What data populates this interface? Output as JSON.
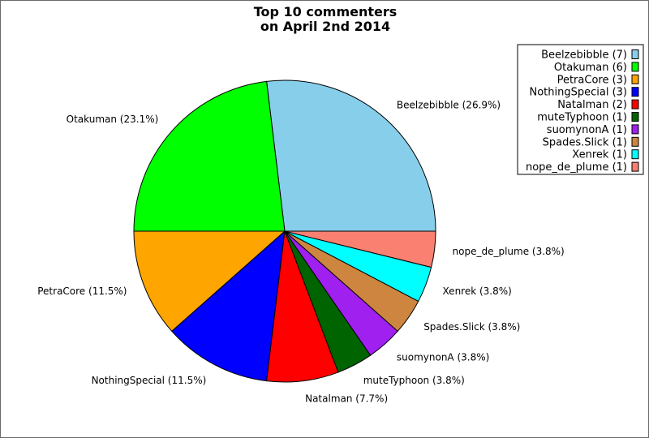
{
  "chart_data": {
    "type": "pie",
    "title": [
      "Top 10 commenters",
      "on April 2nd 2014"
    ],
    "series": [
      {
        "name": "Beelzebibble",
        "value": 7,
        "percent_label": "Beelzebibble (26.9%)",
        "legend_label": "Beelzebibble (7)",
        "color": "#87ceeb"
      },
      {
        "name": "Otakuman",
        "value": 6,
        "percent_label": "Otakuman (23.1%)",
        "legend_label": "Otakuman (6)",
        "color": "#00ff00"
      },
      {
        "name": "PetraCore",
        "value": 3,
        "percent_label": "PetraCore (11.5%)",
        "legend_label": "PetraCore (3)",
        "color": "#ffa500"
      },
      {
        "name": "NothingSpecial",
        "value": 3,
        "percent_label": "NothingSpecial (11.5%)",
        "legend_label": "NothingSpecial (3)",
        "color": "#0000ff"
      },
      {
        "name": "Natalman",
        "value": 2,
        "percent_label": "Natalman (7.7%)",
        "legend_label": "Natalman (2)",
        "color": "#ff0000"
      },
      {
        "name": "muteTyphoon",
        "value": 1,
        "percent_label": "muteTyphoon (3.8%)",
        "legend_label": "muteTyphoon (1)",
        "color": "#006400"
      },
      {
        "name": "suomynonA",
        "value": 1,
        "percent_label": "suomynonA (3.8%)",
        "legend_label": "suomynonA (1)",
        "color": "#a020f0"
      },
      {
        "name": "Spades.Slick",
        "value": 1,
        "percent_label": "Spades.Slick (3.8%)",
        "legend_label": "Spades.Slick (1)",
        "color": "#cd853f"
      },
      {
        "name": "Xenrek",
        "value": 1,
        "percent_label": "Xenrek (3.8%)",
        "legend_label": "Xenrek (1)",
        "color": "#00ffff"
      },
      {
        "name": "nope_de_plume",
        "value": 1,
        "percent_label": "nope_de_plume (3.8%)",
        "legend_label": "nope_de_plume (1)",
        "color": "#fa8072"
      }
    ],
    "legend_position": "top-right",
    "start_angle_deg": 0,
    "direction": "counterclockwise"
  }
}
